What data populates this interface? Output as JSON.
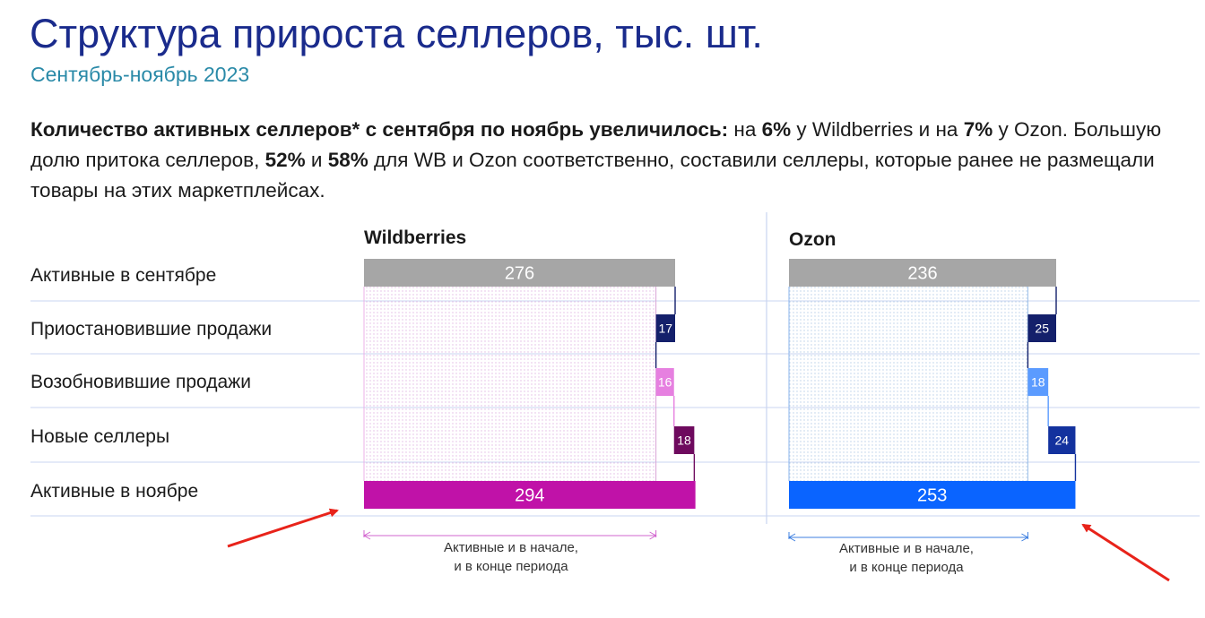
{
  "header": {
    "title": "Структура прироста селлеров, тыс. шт.",
    "subtitle": "Сентябрь-ноябрь 2023"
  },
  "description": {
    "p1_b1": "Количество активных селлеров* с сентября по ноябрь увеличилось:",
    "p1_t1": " на ",
    "p1_b2": "6%",
    "p1_t2": " у Wildberries и на ",
    "p1_b3": "7%",
    "p1_t3": " у Ozon. Большую долю притока селлеров, ",
    "p1_b4": "52%",
    "p1_t4": " и ",
    "p1_b5": "58%",
    "p1_t5": " для WB и Ozon соответственно, составили селлеры, которые ранее не размещали товары на этих маркетплейсах."
  },
  "chart_data": {
    "type": "bar",
    "categories": [
      "Активные в сентябре",
      "Приостановившие продажи",
      "Возобновившие продажи",
      "Новые селлеры",
      "Активные в ноябре"
    ],
    "series": [
      {
        "name": "Wildberries",
        "values": [
          276,
          17,
          16,
          18,
          294
        ],
        "colors": [
          "#a6a6a6",
          "#14206b",
          "#e680e0",
          "#6e0a5e",
          "#c012a8"
        ],
        "retained_label": "Активные и в начале,\nи в конце периода",
        "retained_value": 259
      },
      {
        "name": "Ozon",
        "values": [
          236,
          25,
          18,
          24,
          253
        ],
        "colors": [
          "#a6a6a6",
          "#14206b",
          "#5b9bff",
          "#13329e",
          "#0a64ff"
        ],
        "retained_label": "Активные и в начале,\nи в конце периода",
        "retained_value": 211
      }
    ],
    "grid": true
  }
}
